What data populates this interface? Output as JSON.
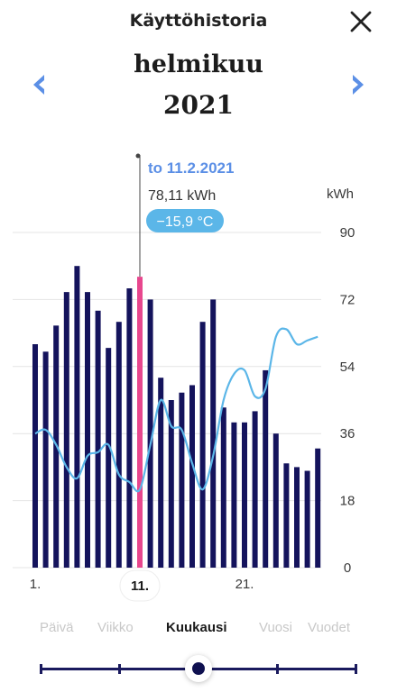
{
  "header": {
    "title": "Käyttöhistoria"
  },
  "period": {
    "month": "helmikuu",
    "year": "2021"
  },
  "icons": {
    "close": "close-icon",
    "prev": "chevron-left-icon",
    "next": "chevron-right-icon"
  },
  "colors": {
    "bar": "#14135c",
    "selected_bar": "#e8478e",
    "temperature_line": "#5bb6e8",
    "accent": "#5b8fe6",
    "temp_badge": "#5bb6e8"
  },
  "tooltip": {
    "date": "to 11.2.2021",
    "value": "78,11 kWh",
    "temperature": "−15,9 °C"
  },
  "chart_data": {
    "type": "bar",
    "ylabel": "kWh",
    "ylim": [
      0,
      90
    ],
    "y_ticks": [
      "90",
      "72",
      "54",
      "36",
      "18",
      "0"
    ],
    "x_tick_labels": [
      "1.",
      "11.",
      "21."
    ],
    "categories": [
      "1",
      "2",
      "3",
      "4",
      "5",
      "6",
      "7",
      "8",
      "9",
      "10",
      "11",
      "12",
      "13",
      "14",
      "15",
      "16",
      "17",
      "18",
      "19",
      "20",
      "21",
      "22",
      "23",
      "24",
      "25",
      "26",
      "27",
      "28"
    ],
    "series": [
      {
        "type": "bar",
        "values": [
          60,
          58,
          65,
          74,
          81,
          74,
          69,
          59,
          66,
          75,
          78.11,
          72,
          51,
          45,
          47,
          49,
          66,
          72,
          43,
          39,
          39,
          42,
          53,
          36,
          28,
          27,
          26,
          32
        ]
      },
      {
        "type": "line",
        "unit": "°C",
        "values": [
          36,
          37,
          33,
          27,
          24,
          30,
          31,
          33,
          25,
          23,
          21,
          33,
          45,
          38,
          37,
          28,
          21,
          30,
          45,
          52,
          53,
          46,
          48,
          62,
          64,
          60,
          61,
          62
        ]
      }
    ],
    "selected_index": 10,
    "grid": true
  },
  "tabs": [
    {
      "label": "Päivä",
      "active": false
    },
    {
      "label": "Viikko",
      "active": false
    },
    {
      "label": "Kuukausi",
      "active": true
    },
    {
      "label": "Vuosi",
      "active": false
    },
    {
      "label": "Vuodet",
      "active": false
    }
  ],
  "slider": {
    "position_index": 2,
    "stops": 5
  }
}
